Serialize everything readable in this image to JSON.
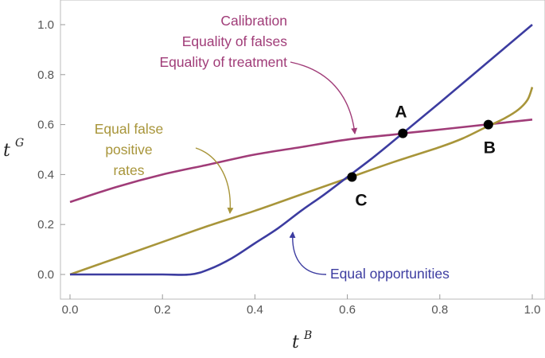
{
  "chart_data": {
    "type": "line",
    "xlabel": "t",
    "xlabel_sup": "B",
    "ylabel": "t",
    "ylabel_sup": "G",
    "xlim": [
      -0.02,
      1.02
    ],
    "ylim": [
      -0.1,
      1.04
    ],
    "xticks": [
      0.0,
      0.2,
      0.4,
      0.6,
      0.8,
      1.0
    ],
    "yticks": [
      0.0,
      0.2,
      0.4,
      0.6,
      0.8,
      1.0
    ],
    "xtick_labels": [
      "0.0",
      "0.2",
      "0.4",
      "0.6",
      "0.8",
      "1.0"
    ],
    "ytick_labels": [
      "0.0",
      "0.2",
      "0.4",
      "0.6",
      "0.8",
      "1.0"
    ],
    "grid": false,
    "series": [
      {
        "color": "#a03c78",
        "x": [
          0.0,
          0.1,
          0.2,
          0.3,
          0.4,
          0.5,
          0.6,
          0.7,
          0.72,
          0.8,
          0.9,
          1.0
        ],
        "y": [
          0.29,
          0.35,
          0.4,
          0.44,
          0.48,
          0.51,
          0.54,
          0.56,
          0.565,
          0.58,
          0.6,
          0.62
        ]
      },
      {
        "color": "#a8953a",
        "x": [
          0.0,
          0.1,
          0.2,
          0.3,
          0.4,
          0.5,
          0.6,
          0.7,
          0.8,
          0.85,
          0.9,
          0.94,
          0.97,
          0.99,
          1.0
        ],
        "y": [
          0.0,
          0.065,
          0.13,
          0.195,
          0.255,
          0.32,
          0.385,
          0.45,
          0.51,
          0.545,
          0.59,
          0.625,
          0.66,
          0.7,
          0.75
        ]
      },
      {
        "color": "#3c3ca0",
        "x": [
          0.0,
          0.1,
          0.2,
          0.26,
          0.3,
          0.35,
          0.4,
          0.45,
          0.5,
          0.55,
          0.6,
          0.65,
          0.7,
          0.8,
          0.9,
          1.0
        ],
        "y": [
          0.0,
          0.0,
          0.0,
          0.0,
          0.02,
          0.065,
          0.125,
          0.185,
          0.255,
          0.32,
          0.39,
          0.46,
          0.535,
          0.688,
          0.844,
          1.0
        ]
      }
    ],
    "points": [
      {
        "label": "A",
        "x": 0.72,
        "y": 0.565
      },
      {
        "label": "B",
        "x": 0.905,
        "y": 0.6
      },
      {
        "label": "C",
        "x": 0.61,
        "y": 0.39
      }
    ],
    "annotations": [
      {
        "lines": [
          "Calibration",
          "Equality of falses",
          "Equality of treatment"
        ],
        "color": "#a03c78"
      },
      {
        "lines": [
          "Equal false",
          "positive",
          "rates"
        ],
        "color": "#a8953a"
      },
      {
        "lines": [
          "Equal opportunities"
        ],
        "color": "#3c3ca0"
      }
    ]
  }
}
